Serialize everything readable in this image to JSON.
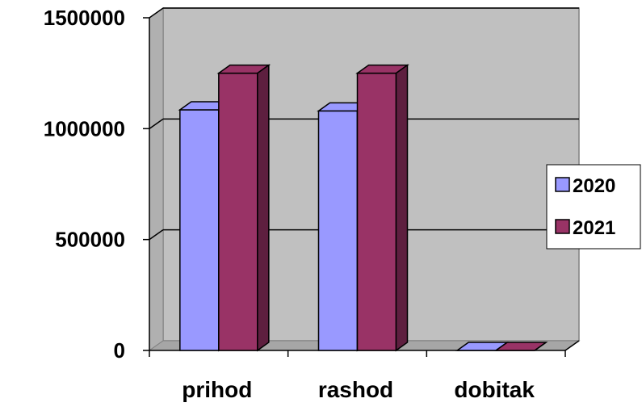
{
  "chart_data": {
    "type": "bar",
    "style": "3d-clustered-column",
    "categories": [
      "prihod",
      "rashod",
      "dobitak"
    ],
    "series": [
      {
        "name": "2020",
        "values": [
          1085000,
          1080000,
          0
        ],
        "color": "#9999ff",
        "side_color": "#5a5ab0"
      },
      {
        "name": "2021",
        "values": [
          1250000,
          1250000,
          0
        ],
        "color": "#993366",
        "side_color": "#5e1f3f"
      }
    ],
    "ylim": [
      0,
      1500000
    ],
    "yticks": [
      0,
      500000,
      1000000,
      1500000
    ],
    "ytick_labels": [
      "0",
      "500000",
      "1000000",
      "1500000"
    ],
    "grid": true,
    "legend_position": "right",
    "wall_color": "#c0c0c0",
    "floor_color": "#a6a6a6"
  }
}
